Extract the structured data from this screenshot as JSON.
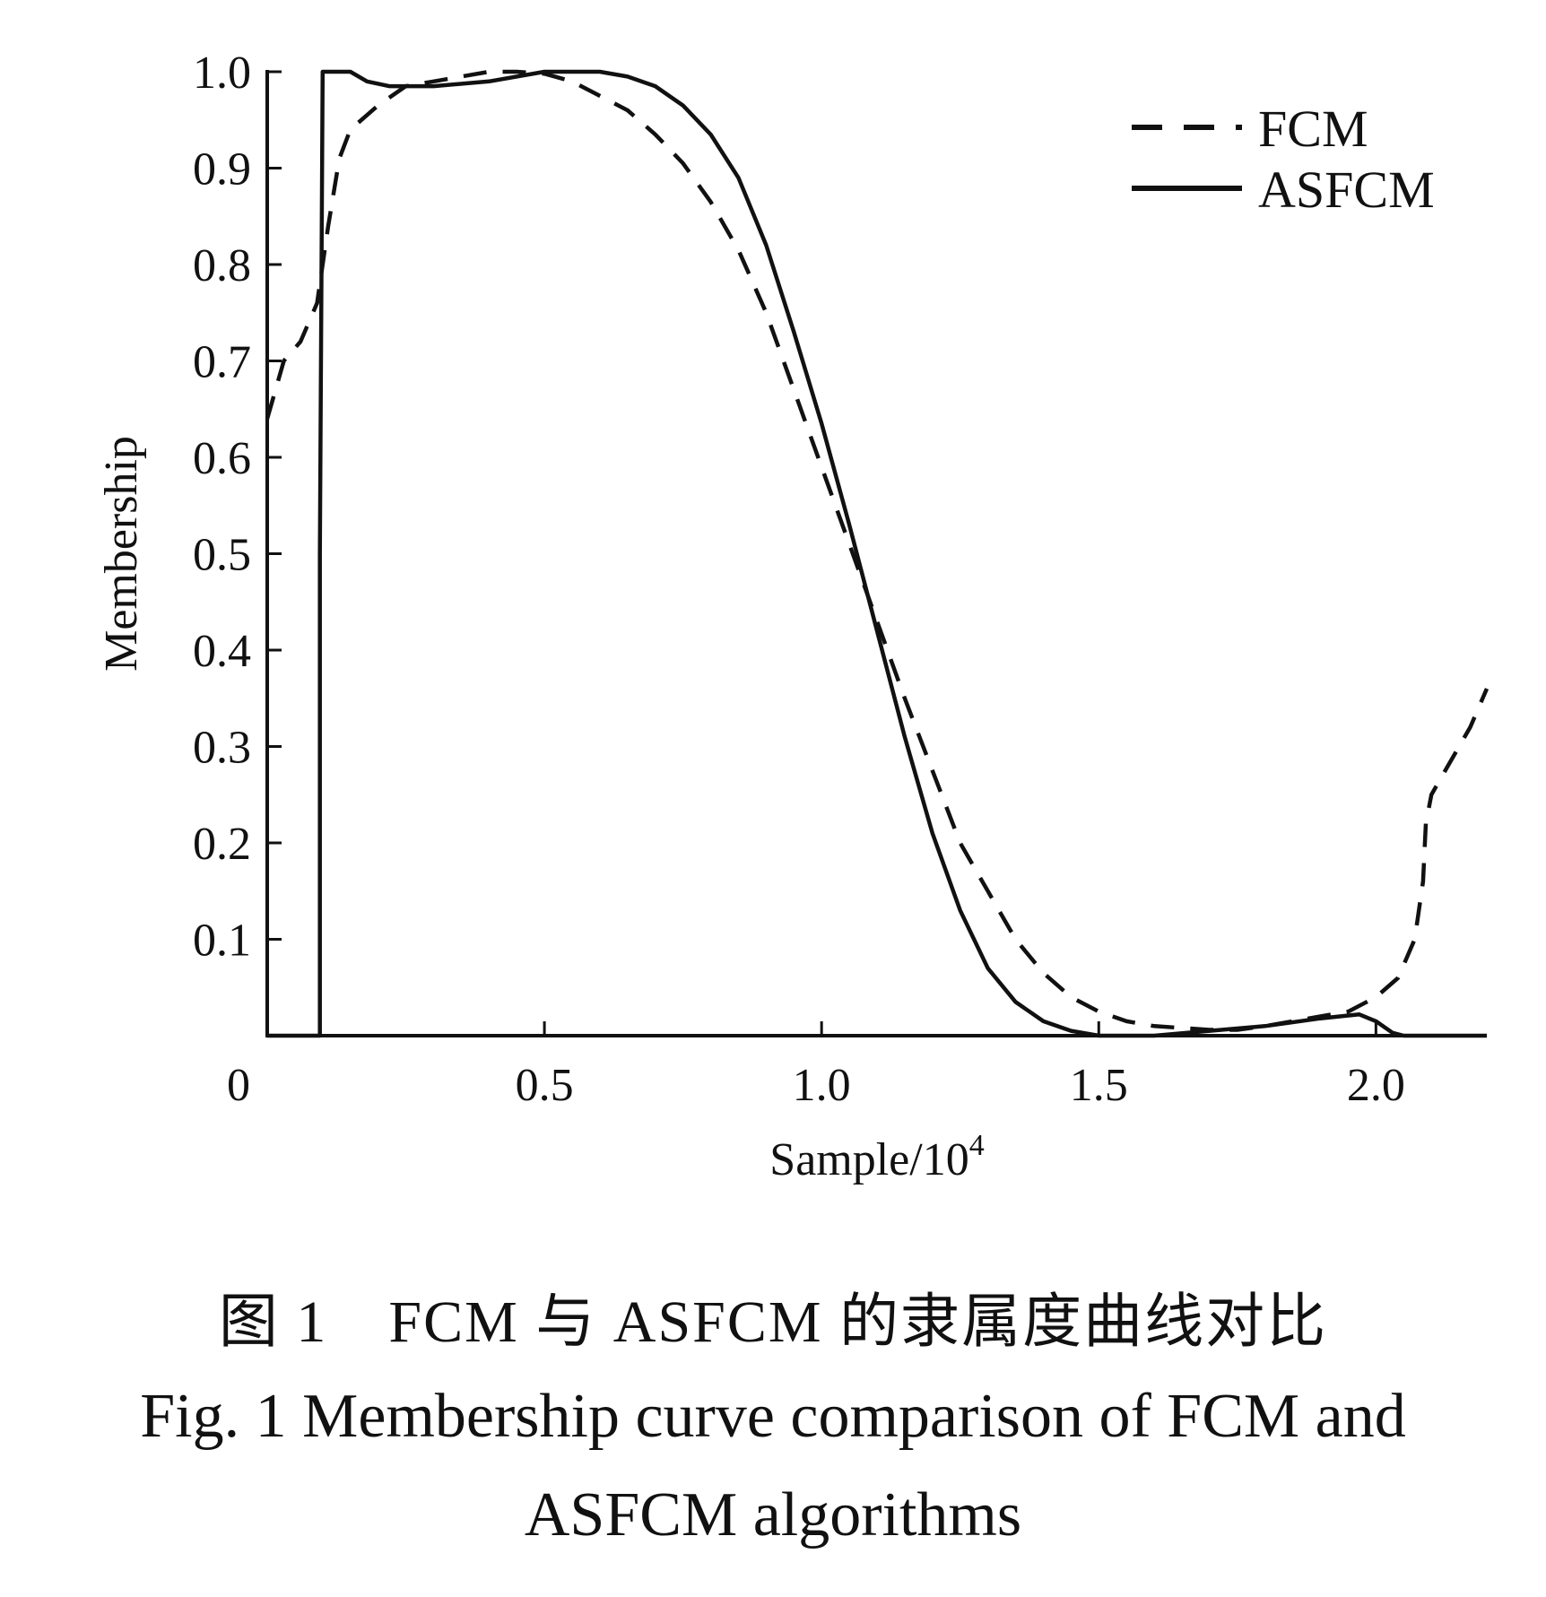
{
  "chart_data": {
    "type": "line",
    "xlabel": "Sample/10",
    "xlabel_superscript": "4",
    "ylabel": "Membership",
    "xlim": [
      0,
      2.2
    ],
    "ylim": [
      0,
      1.0
    ],
    "x_ticks": [
      {
        "value": 0,
        "label": "0"
      },
      {
        "value": 0.5,
        "label": "0.5"
      },
      {
        "value": 1.0,
        "label": "1.0"
      },
      {
        "value": 1.5,
        "label": "1.5"
      },
      {
        "value": 2.0,
        "label": "2.0"
      }
    ],
    "y_ticks": [
      {
        "value": 0.1,
        "label": "0.1"
      },
      {
        "value": 0.2,
        "label": "0.2"
      },
      {
        "value": 0.3,
        "label": "0.3"
      },
      {
        "value": 0.4,
        "label": "0.4"
      },
      {
        "value": 0.5,
        "label": "0.5"
      },
      {
        "value": 0.6,
        "label": "0.6"
      },
      {
        "value": 0.7,
        "label": "0.7"
      },
      {
        "value": 0.8,
        "label": "0.8"
      },
      {
        "value": 0.9,
        "label": "0.9"
      },
      {
        "value": 1.0,
        "label": "1.0"
      }
    ],
    "grid": false,
    "legend_position": "top-right",
    "series": [
      {
        "name": "FCM",
        "style": "dashed",
        "color": "#111111",
        "points": [
          [
            0.0,
            0.64
          ],
          [
            0.03,
            0.7
          ],
          [
            0.06,
            0.72
          ],
          [
            0.09,
            0.76
          ],
          [
            0.11,
            0.84
          ],
          [
            0.13,
            0.91
          ],
          [
            0.15,
            0.94
          ],
          [
            0.2,
            0.965
          ],
          [
            0.25,
            0.985
          ],
          [
            0.3,
            0.99
          ],
          [
            0.35,
            0.995
          ],
          [
            0.4,
            1.0
          ],
          [
            0.45,
            1.0
          ],
          [
            0.5,
            0.998
          ],
          [
            0.55,
            0.99
          ],
          [
            0.6,
            0.975
          ],
          [
            0.65,
            0.96
          ],
          [
            0.7,
            0.935
          ],
          [
            0.75,
            0.905
          ],
          [
            0.8,
            0.865
          ],
          [
            0.85,
            0.815
          ],
          [
            0.9,
            0.75
          ],
          [
            0.95,
            0.67
          ],
          [
            1.0,
            0.59
          ],
          [
            1.05,
            0.51
          ],
          [
            1.1,
            0.43
          ],
          [
            1.15,
            0.35
          ],
          [
            1.2,
            0.275
          ],
          [
            1.25,
            0.2
          ],
          [
            1.3,
            0.15
          ],
          [
            1.35,
            0.1
          ],
          [
            1.4,
            0.065
          ],
          [
            1.45,
            0.04
          ],
          [
            1.5,
            0.025
          ],
          [
            1.55,
            0.015
          ],
          [
            1.6,
            0.01
          ],
          [
            1.65,
            0.008
          ],
          [
            1.7,
            0.006
          ],
          [
            1.75,
            0.006
          ],
          [
            1.8,
            0.01
          ],
          [
            1.85,
            0.015
          ],
          [
            1.9,
            0.02
          ],
          [
            1.95,
            0.025
          ],
          [
            2.0,
            0.04
          ],
          [
            2.04,
            0.06
          ],
          [
            2.07,
            0.1
          ],
          [
            2.085,
            0.16
          ],
          [
            2.09,
            0.22
          ],
          [
            2.1,
            0.25
          ],
          [
            2.13,
            0.28
          ],
          [
            2.17,
            0.32
          ],
          [
            2.2,
            0.36
          ]
        ]
      },
      {
        "name": "ASFCM",
        "style": "solid",
        "color": "#111111",
        "points": [
          [
            0.0,
            0.0
          ],
          [
            0.095,
            0.0
          ],
          [
            0.095,
            0.5
          ],
          [
            0.1,
            1.0
          ],
          [
            0.15,
            1.0
          ],
          [
            0.18,
            0.99
          ],
          [
            0.22,
            0.985
          ],
          [
            0.3,
            0.985
          ],
          [
            0.4,
            0.99
          ],
          [
            0.5,
            1.0
          ],
          [
            0.55,
            1.0
          ],
          [
            0.6,
            1.0
          ],
          [
            0.65,
            0.995
          ],
          [
            0.7,
            0.985
          ],
          [
            0.75,
            0.965
          ],
          [
            0.8,
            0.935
          ],
          [
            0.85,
            0.89
          ],
          [
            0.9,
            0.82
          ],
          [
            0.95,
            0.73
          ],
          [
            1.0,
            0.635
          ],
          [
            1.05,
            0.53
          ],
          [
            1.1,
            0.42
          ],
          [
            1.15,
            0.31
          ],
          [
            1.2,
            0.21
          ],
          [
            1.25,
            0.13
          ],
          [
            1.3,
            0.07
          ],
          [
            1.35,
            0.035
          ],
          [
            1.4,
            0.015
          ],
          [
            1.45,
            0.005
          ],
          [
            1.5,
            0.0
          ],
          [
            1.6,
            0.0
          ],
          [
            1.7,
            0.005
          ],
          [
            1.8,
            0.01
          ],
          [
            1.9,
            0.018
          ],
          [
            1.97,
            0.022
          ],
          [
            2.0,
            0.015
          ],
          [
            2.03,
            0.003
          ],
          [
            2.05,
            0.0
          ],
          [
            2.2,
            0.0
          ]
        ]
      }
    ]
  },
  "caption": {
    "cn": "图 1　FCM 与 ASFCM 的隶属度曲线对比",
    "en_line1": "Fig. 1  Membership curve comparison of FCM and",
    "en_line2": "ASFCM algorithms"
  }
}
